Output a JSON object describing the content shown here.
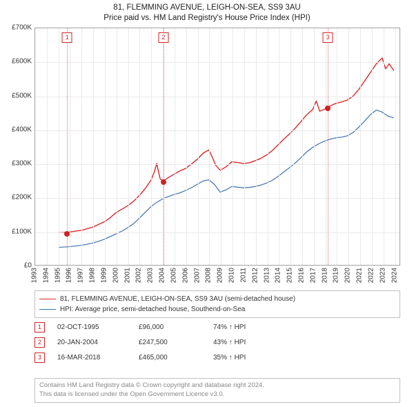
{
  "title": {
    "line1": "81, FLEMMING AVENUE, LEIGH-ON-SEA, SS9 3AU",
    "line2": "Price paid vs. HM Land Registry's House Price Index (HPI)"
  },
  "chart": {
    "type": "line",
    "background_color": "#ffffff",
    "border_color": "#a0a0a0",
    "grid_color": "#e9e9e9",
    "x": {
      "min": 1993,
      "max": 2024.5,
      "ticks": [
        1993,
        1994,
        1995,
        1996,
        1997,
        1998,
        1999,
        2000,
        2001,
        2002,
        2003,
        2004,
        2005,
        2006,
        2007,
        2008,
        2009,
        2010,
        2011,
        2012,
        2013,
        2014,
        2015,
        2016,
        2017,
        2018,
        2019,
        2020,
        2021,
        2022,
        2023,
        2024
      ],
      "tick_fontsize": 10,
      "tick_rotation_deg": -90
    },
    "y": {
      "min": 0,
      "max": 700000,
      "ticks": [
        0,
        100000,
        200000,
        300000,
        400000,
        500000,
        600000,
        700000
      ],
      "tick_labels": [
        "£0",
        "£100K",
        "£200K",
        "£300K",
        "£400K",
        "£500K",
        "£600K",
        "£700K"
      ],
      "tick_fontsize": 10
    },
    "series": [
      {
        "id": "subject",
        "label": "81, FLEMMING AVENUE, LEIGH-ON-SEA, SS9 3AU (semi-detached house)",
        "color": "#d62728",
        "line_width": 1.4,
        "data": [
          [
            1995.0,
            95000
          ],
          [
            1995.75,
            96000
          ],
          [
            1996.5,
            100000
          ],
          [
            1997.0,
            102000
          ],
          [
            1997.5,
            107000
          ],
          [
            1998.0,
            112000
          ],
          [
            1998.5,
            120000
          ],
          [
            1999.0,
            128000
          ],
          [
            1999.5,
            140000
          ],
          [
            2000.0,
            155000
          ],
          [
            2000.5,
            165000
          ],
          [
            2001.0,
            175000
          ],
          [
            2001.5,
            188000
          ],
          [
            2002.0,
            205000
          ],
          [
            2002.5,
            225000
          ],
          [
            2003.0,
            250000
          ],
          [
            2003.3,
            275000
          ],
          [
            2003.5,
            300000
          ],
          [
            2003.8,
            255000
          ],
          [
            2004.05,
            247500
          ],
          [
            2004.5,
            258000
          ],
          [
            2005.0,
            268000
          ],
          [
            2005.5,
            278000
          ],
          [
            2006.0,
            285000
          ],
          [
            2006.5,
            298000
          ],
          [
            2007.0,
            312000
          ],
          [
            2007.5,
            330000
          ],
          [
            2008.0,
            340000
          ],
          [
            2008.3,
            320000
          ],
          [
            2008.6,
            295000
          ],
          [
            2009.0,
            280000
          ],
          [
            2009.5,
            290000
          ],
          [
            2010.0,
            305000
          ],
          [
            2010.5,
            303000
          ],
          [
            2011.0,
            300000
          ],
          [
            2011.5,
            302000
          ],
          [
            2012.0,
            308000
          ],
          [
            2012.5,
            315000
          ],
          [
            2013.0,
            325000
          ],
          [
            2013.5,
            338000
          ],
          [
            2014.0,
            355000
          ],
          [
            2014.5,
            372000
          ],
          [
            2015.0,
            388000
          ],
          [
            2015.5,
            405000
          ],
          [
            2016.0,
            425000
          ],
          [
            2016.5,
            445000
          ],
          [
            2017.0,
            460000
          ],
          [
            2017.3,
            485000
          ],
          [
            2017.6,
            455000
          ],
          [
            2018.0,
            460000
          ],
          [
            2018.21,
            465000
          ],
          [
            2018.5,
            470000
          ],
          [
            2019.0,
            478000
          ],
          [
            2019.5,
            482000
          ],
          [
            2020.0,
            488000
          ],
          [
            2020.5,
            500000
          ],
          [
            2021.0,
            520000
          ],
          [
            2021.5,
            545000
          ],
          [
            2022.0,
            570000
          ],
          [
            2022.5,
            595000
          ],
          [
            2023.0,
            612000
          ],
          [
            2023.3,
            580000
          ],
          [
            2023.6,
            595000
          ],
          [
            2024.0,
            575000
          ]
        ]
      },
      {
        "id": "hpi",
        "label": "HPI: Average price, semi-detached house, Southend-on-Sea",
        "color": "#3b6fb0",
        "line_width": 1.2,
        "data": [
          [
            1995.0,
            52000
          ],
          [
            1995.5,
            53000
          ],
          [
            1996.0,
            54000
          ],
          [
            1996.5,
            56000
          ],
          [
            1997.0,
            58000
          ],
          [
            1997.5,
            61000
          ],
          [
            1998.0,
            65000
          ],
          [
            1998.5,
            70000
          ],
          [
            1999.0,
            76000
          ],
          [
            1999.5,
            84000
          ],
          [
            2000.0,
            92000
          ],
          [
            2000.5,
            100000
          ],
          [
            2001.0,
            110000
          ],
          [
            2001.5,
            122000
          ],
          [
            2002.0,
            138000
          ],
          [
            2002.5,
            155000
          ],
          [
            2003.0,
            172000
          ],
          [
            2003.5,
            185000
          ],
          [
            2004.0,
            195000
          ],
          [
            2004.5,
            202000
          ],
          [
            2005.0,
            208000
          ],
          [
            2005.5,
            213000
          ],
          [
            2006.0,
            220000
          ],
          [
            2006.5,
            228000
          ],
          [
            2007.0,
            238000
          ],
          [
            2007.5,
            248000
          ],
          [
            2008.0,
            252000
          ],
          [
            2008.5,
            238000
          ],
          [
            2009.0,
            215000
          ],
          [
            2009.5,
            222000
          ],
          [
            2010.0,
            232000
          ],
          [
            2010.5,
            230000
          ],
          [
            2011.0,
            228000
          ],
          [
            2011.5,
            229000
          ],
          [
            2012.0,
            232000
          ],
          [
            2012.5,
            236000
          ],
          [
            2013.0,
            242000
          ],
          [
            2013.5,
            250000
          ],
          [
            2014.0,
            262000
          ],
          [
            2014.5,
            275000
          ],
          [
            2015.0,
            288000
          ],
          [
            2015.5,
            302000
          ],
          [
            2016.0,
            318000
          ],
          [
            2016.5,
            335000
          ],
          [
            2017.0,
            348000
          ],
          [
            2017.5,
            358000
          ],
          [
            2018.0,
            366000
          ],
          [
            2018.5,
            372000
          ],
          [
            2019.0,
            376000
          ],
          [
            2019.5,
            378000
          ],
          [
            2020.0,
            382000
          ],
          [
            2020.5,
            392000
          ],
          [
            2021.0,
            408000
          ],
          [
            2021.5,
            426000
          ],
          [
            2022.0,
            445000
          ],
          [
            2022.5,
            458000
          ],
          [
            2023.0,
            452000
          ],
          [
            2023.5,
            440000
          ],
          [
            2024.0,
            435000
          ]
        ]
      }
    ],
    "event_markers": {
      "line_color": "#d96a6a",
      "line_style": "dotted",
      "box_border": "#cc2222",
      "box_text_color": "#cc2222",
      "dot_color": "#cc2222",
      "items": [
        {
          "n": "1",
          "x": 1995.75,
          "y": 96000
        },
        {
          "n": "2",
          "x": 2004.05,
          "y": 247500
        },
        {
          "n": "3",
          "x": 2018.21,
          "y": 465000
        }
      ]
    }
  },
  "legend": {
    "border_color": "#bfbfbf",
    "fontsize": 10,
    "items": [
      {
        "color": "#d62728",
        "label_path": "chart.series.0.label"
      },
      {
        "color": "#3b6fb0",
        "label_path": "chart.series.1.label"
      }
    ]
  },
  "events_table": {
    "rows": [
      {
        "n": "1",
        "date": "02-OCT-1995",
        "price": "£96,000",
        "pct": "74%",
        "suffix": "HPI"
      },
      {
        "n": "2",
        "date": "20-JAN-2004",
        "price": "£247,500",
        "pct": "43%",
        "suffix": "HPI"
      },
      {
        "n": "3",
        "date": "16-MAR-2018",
        "price": "£465,000",
        "pct": "35%",
        "suffix": "HPI"
      }
    ]
  },
  "attribution": {
    "line1": "Contains HM Land Registry data © Crown copyright and database right 2024.",
    "line2": "This data is licensed under the Open Government Licence v3.0.",
    "color": "#888888",
    "border_color": "#bfbfbf"
  }
}
